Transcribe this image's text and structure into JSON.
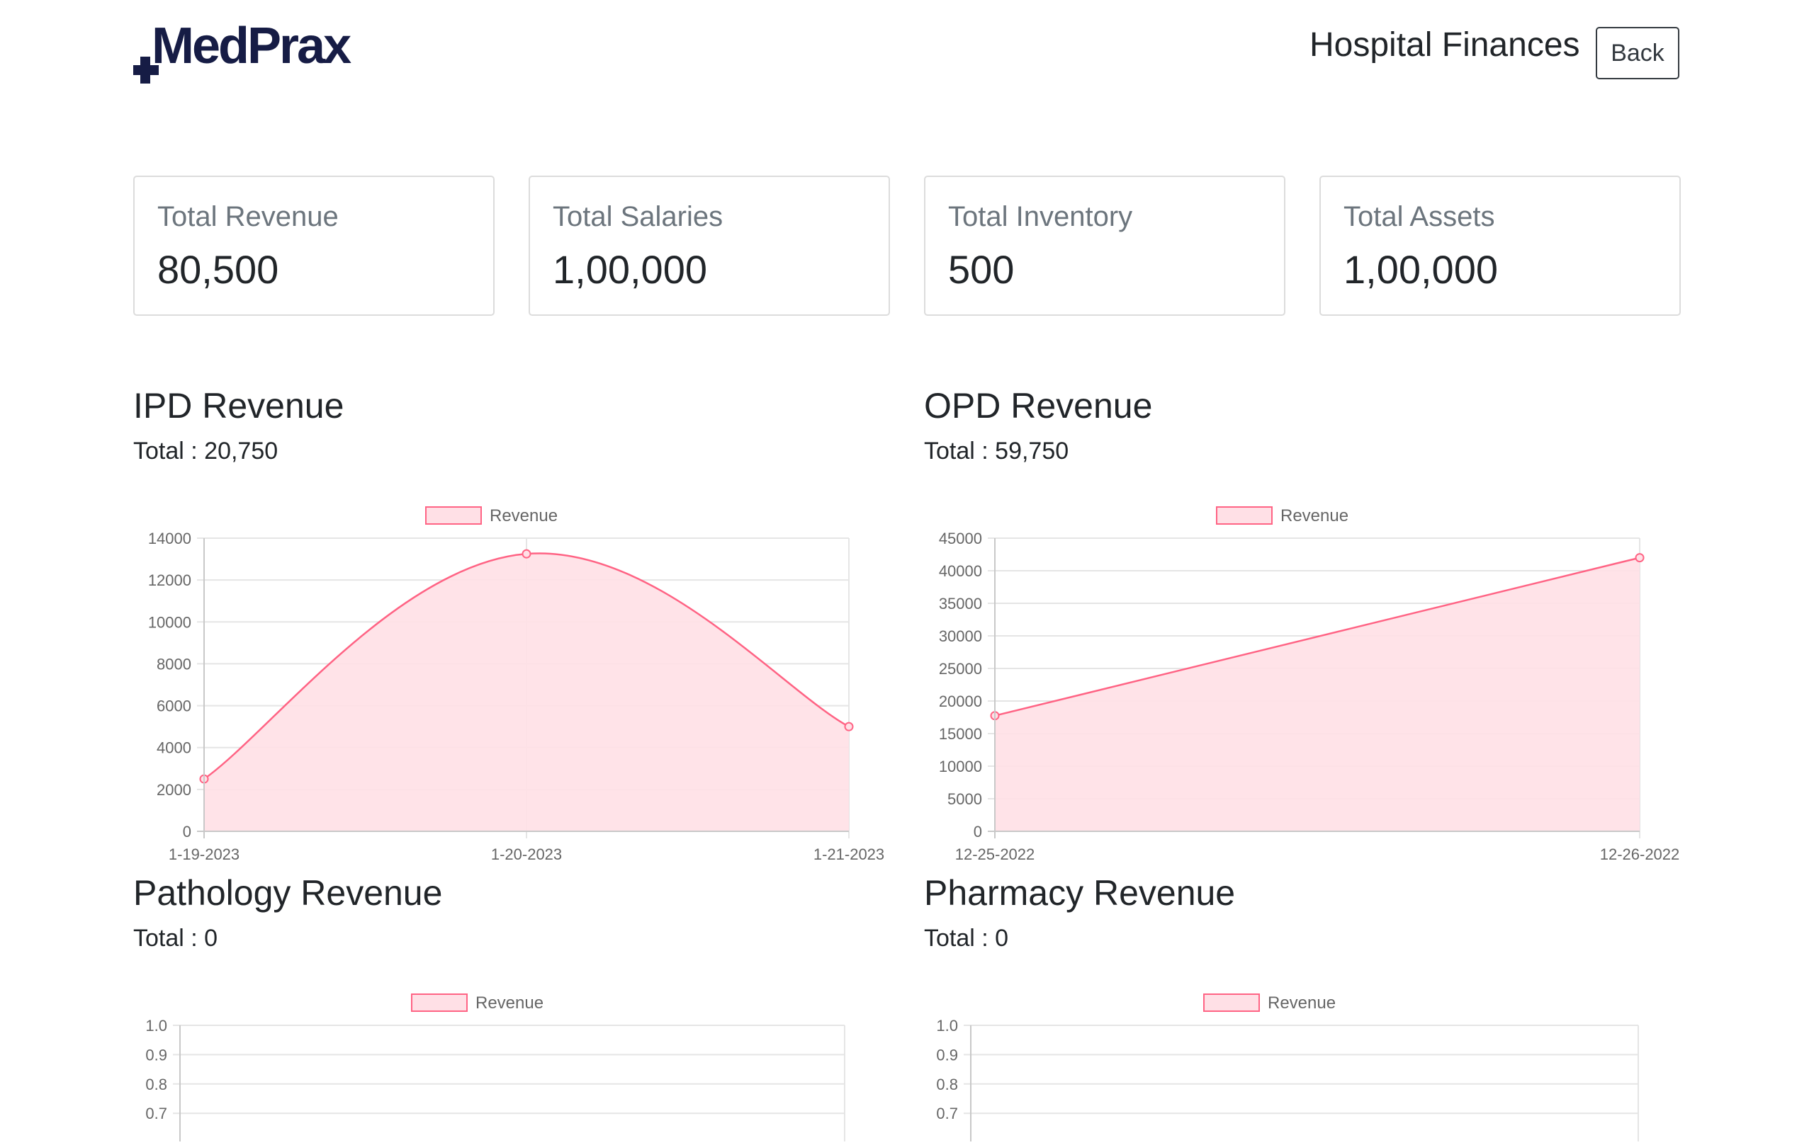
{
  "header": {
    "logo_text": "MedPrax",
    "title": "Hospital Finances",
    "back_label": "Back"
  },
  "colors": {
    "brand": "#161c45",
    "series_line": "#ff6384",
    "series_fill": "#ffe0e6"
  },
  "cards": [
    {
      "label": "Total Revenue",
      "value": "80,500"
    },
    {
      "label": "Total Salaries",
      "value": "1,00,000"
    },
    {
      "label": "Total Inventory",
      "value": "500"
    },
    {
      "label": "Total Assets",
      "value": "1,00,000"
    }
  ],
  "sections": {
    "ipd": {
      "title": "IPD Revenue",
      "total": "Total : 20,750"
    },
    "opd": {
      "title": "OPD Revenue",
      "total": "Total : 59,750"
    },
    "pathology": {
      "title": "Pathology Revenue",
      "total": "Total : 0"
    },
    "pharmacy": {
      "title": "Pharmacy Revenue",
      "total": "Total : 0"
    }
  },
  "chart_data": [
    {
      "type": "area",
      "legend": "Revenue",
      "legend_position": "top-center",
      "categories": [
        "1-19-2023",
        "1-20-2023",
        "1-21-2023"
      ],
      "values": [
        2500,
        13250,
        5000
      ],
      "ylim": [
        0,
        14000
      ],
      "yticks": [
        0,
        2000,
        4000,
        6000,
        8000,
        10000,
        12000,
        14000
      ],
      "curve": "smooth",
      "grid": true
    },
    {
      "type": "area",
      "legend": "Revenue",
      "legend_position": "top-center",
      "categories": [
        "12-25-2022",
        "12-26-2022"
      ],
      "values": [
        17750,
        42000
      ],
      "ylim": [
        0,
        45000
      ],
      "yticks": [
        0,
        5000,
        10000,
        15000,
        20000,
        25000,
        30000,
        35000,
        40000,
        45000
      ],
      "curve": "straight",
      "grid": true
    },
    {
      "type": "area",
      "legend": "Revenue",
      "legend_position": "top-center",
      "categories": [],
      "values": [],
      "ylim": [
        0,
        1.0
      ],
      "yticks": [
        "1.0",
        "0.9",
        "0.8",
        "0.7"
      ],
      "grid": true
    },
    {
      "type": "area",
      "legend": "Revenue",
      "legend_position": "top-center",
      "categories": [],
      "values": [],
      "ylim": [
        0,
        1.0
      ],
      "yticks": [
        "1.0",
        "0.9",
        "0.8",
        "0.7"
      ],
      "grid": true
    }
  ]
}
